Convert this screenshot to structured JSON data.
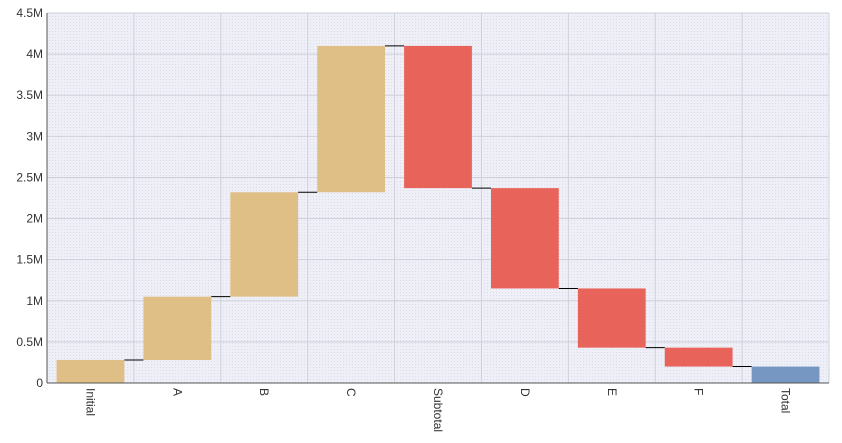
{
  "chart_data": {
    "type": "waterfall",
    "title": "",
    "xlabel": "",
    "ylabel": "",
    "ylim": [
      0,
      4500000
    ],
    "y_ticks": [
      0,
      500000,
      1000000,
      1500000,
      2000000,
      2500000,
      3000000,
      3500000,
      4000000,
      4500000
    ],
    "y_tick_labels": [
      "0",
      "0.5M",
      "1M",
      "1.5M",
      "2M",
      "2.5M",
      "3M",
      "3.5M",
      "4M",
      "4.5M"
    ],
    "grid": true,
    "categories": [
      "Initial",
      "A",
      "B",
      "C",
      "Subtotal",
      "D",
      "E",
      "F",
      "Total"
    ],
    "bars": [
      {
        "category": "Initial",
        "start": 0,
        "end": 280000,
        "kind": "increase"
      },
      {
        "category": "A",
        "start": 280000,
        "end": 1050000,
        "kind": "increase"
      },
      {
        "category": "B",
        "start": 1050000,
        "end": 2320000,
        "kind": "increase"
      },
      {
        "category": "C",
        "start": 2320000,
        "end": 4100000,
        "kind": "increase"
      },
      {
        "category": "Subtotal",
        "start": 4100000,
        "end": 2370000,
        "kind": "decrease"
      },
      {
        "category": "D",
        "start": 2370000,
        "end": 1150000,
        "kind": "decrease"
      },
      {
        "category": "E",
        "start": 1150000,
        "end": 430000,
        "kind": "decrease"
      },
      {
        "category": "F",
        "start": 430000,
        "end": 200000,
        "kind": "decrease"
      },
      {
        "category": "Total",
        "start": 0,
        "end": 200000,
        "kind": "total"
      }
    ],
    "colors": {
      "increase": "#e0bf87",
      "decrease": "#e8635a",
      "total": "#7597c2",
      "plot_background": "#eeeff7",
      "grid": "#cfd0da",
      "connector": "#000000",
      "axis": "#555555"
    }
  }
}
